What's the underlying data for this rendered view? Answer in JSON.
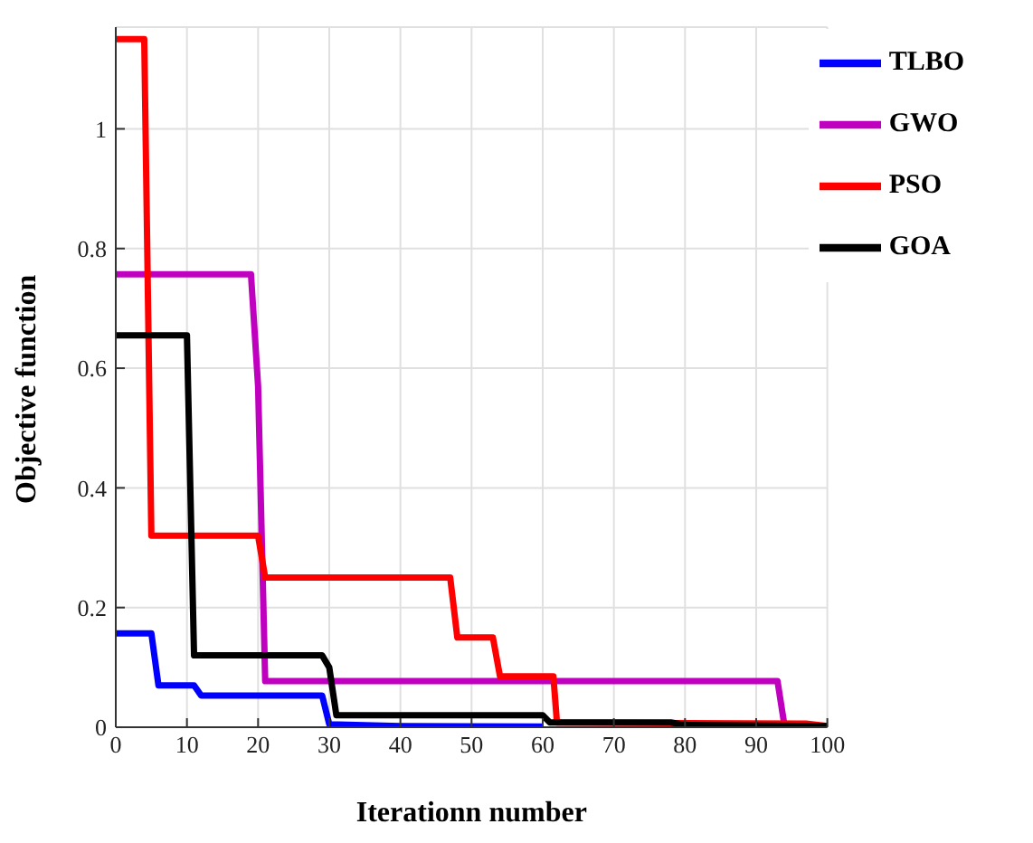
{
  "chart_data": {
    "type": "line",
    "xlabel": "Iterationn number",
    "ylabel": "Objective function",
    "xlim": [
      0,
      100
    ],
    "ylim": [
      0,
      1.17
    ],
    "xticks": [
      0,
      10,
      20,
      30,
      40,
      50,
      60,
      70,
      80,
      90,
      100
    ],
    "yticks": [
      0,
      0.2,
      0.4,
      0.6,
      0.8,
      1
    ],
    "grid": true,
    "legend": "top right",
    "marker": "none",
    "line_style": "solid",
    "series": [
      {
        "name": "TLBO",
        "color": "#0000ff",
        "x": [
          0,
          5,
          6,
          11,
          12,
          29,
          30,
          40,
          60
        ],
        "values": [
          0.157,
          0.157,
          0.07,
          0.07,
          0.053,
          0.053,
          0.005,
          0.002,
          0.001
        ]
      },
      {
        "name": "GWO",
        "color": "#bf00bf",
        "x": [
          0,
          19,
          20,
          21,
          93,
          94,
          100
        ],
        "values": [
          0.757,
          0.757,
          0.57,
          0.077,
          0.077,
          0.001,
          0.001
        ]
      },
      {
        "name": "PSO",
        "color": "#ff0000",
        "x": [
          0,
          4,
          5,
          20,
          21,
          47,
          48,
          53,
          54,
          61.5,
          62,
          97,
          100
        ],
        "values": [
          1.15,
          1.15,
          0.32,
          0.32,
          0.25,
          0.25,
          0.15,
          0.15,
          0.085,
          0.085,
          0.008,
          0.006,
          0.002
        ]
      },
      {
        "name": "GOA",
        "color": "#000000",
        "x": [
          0,
          10,
          11,
          29,
          30,
          31,
          60,
          61,
          78,
          80,
          100
        ],
        "values": [
          0.655,
          0.655,
          0.12,
          0.12,
          0.1,
          0.02,
          0.02,
          0.008,
          0.008,
          0.004,
          0.002
        ]
      }
    ]
  }
}
